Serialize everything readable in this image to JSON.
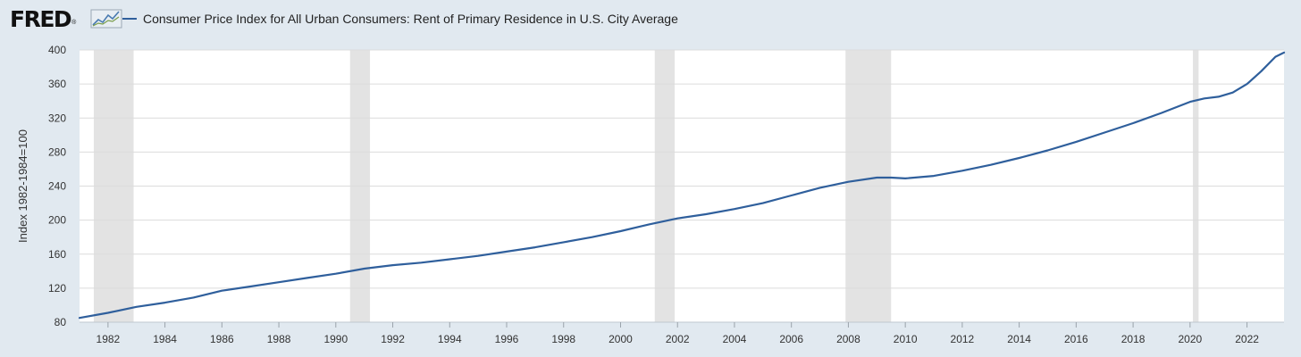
{
  "header": {
    "logo_text": "FRED",
    "logo_reg": "®",
    "logo_icon": "fred-chart-icon",
    "series_label": "Consumer Price Index for All Urban Consumers: Rent of Primary Residence in U.S. City Average"
  },
  "colors": {
    "series": "#2f5f9c",
    "recession": "#e3e3e3",
    "background": "#e1e9f0",
    "plot": "#ffffff"
  },
  "chart_data": {
    "type": "line",
    "title": "Consumer Price Index for All Urban Consumers: Rent of Primary Residence in U.S. City Average",
    "xlabel": "",
    "ylabel": "Index 1982-1984=100",
    "xlim": [
      1981.0,
      2023.3
    ],
    "ylim": [
      80,
      400
    ],
    "yticks": [
      80,
      120,
      160,
      200,
      240,
      280,
      320,
      360,
      400
    ],
    "xticks": [
      1982,
      1984,
      1986,
      1988,
      1990,
      1992,
      1994,
      1996,
      1998,
      2000,
      2002,
      2004,
      2006,
      2008,
      2010,
      2012,
      2014,
      2016,
      2018,
      2020,
      2022
    ],
    "grid": true,
    "legend": "top-left",
    "recessions": [
      [
        1981.5,
        1982.9
      ],
      [
        1990.5,
        1991.2
      ],
      [
        2001.2,
        2001.9
      ],
      [
        2007.9,
        2009.5
      ],
      [
        2020.1,
        2020.3
      ]
    ],
    "series": [
      {
        "name": "Consumer Price Index for All Urban Consumers: Rent of Primary Residence in U.S. City Average",
        "x": [
          1981.0,
          1982.0,
          1983.0,
          1984.0,
          1985.0,
          1986.0,
          1987.0,
          1988.0,
          1989.0,
          1990.0,
          1991.0,
          1992.0,
          1993.0,
          1994.0,
          1995.0,
          1996.0,
          1997.0,
          1998.0,
          1999.0,
          2000.0,
          2001.0,
          2002.0,
          2003.0,
          2004.0,
          2005.0,
          2006.0,
          2007.0,
          2008.0,
          2009.0,
          2009.5,
          2010.0,
          2011.0,
          2012.0,
          2013.0,
          2014.0,
          2015.0,
          2016.0,
          2017.0,
          2018.0,
          2019.0,
          2020.0,
          2020.5,
          2021.0,
          2021.5,
          2022.0,
          2022.5,
          2023.0,
          2023.3
        ],
        "y": [
          85,
          91,
          98,
          103,
          109,
          117,
          122,
          127,
          132,
          137,
          143,
          147,
          150,
          154,
          158,
          163,
          168,
          174,
          180,
          187,
          195,
          202,
          207,
          213,
          220,
          229,
          238,
          245,
          250,
          250,
          249,
          252,
          258,
          265,
          273,
          282,
          292,
          303,
          314,
          326,
          339,
          343,
          345,
          350,
          360,
          375,
          392,
          397
        ]
      }
    ]
  }
}
